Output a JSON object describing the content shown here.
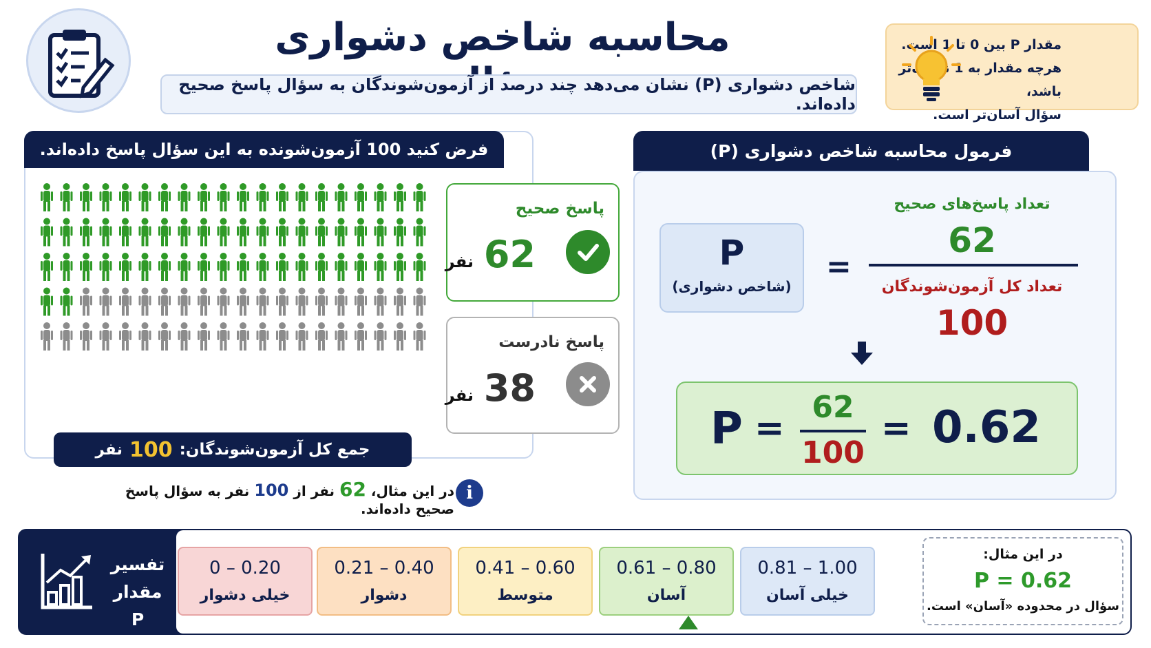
{
  "header": {
    "title": "محاسبه شاخص دشواری سؤال",
    "subtitle": "شاخص دشواری (P) نشان می‌دهد چند درصد از آزمون‌شوندگان به سؤال پاسخ صحیح داده‌اند."
  },
  "tip": {
    "line1": "مقدار P بین 0 تا 1 است.",
    "line2": "هرچه مقدار به 1 نزدیک‌تر باشد،",
    "line3": "سؤال آسان‌تر است."
  },
  "example_panel": {
    "title": "فرض کنید 100 آزمون‌شونده به این سؤال پاسخ داده‌اند.",
    "correct": {
      "label": "پاسخ صحیح",
      "count": "62",
      "unit": "نفر"
    },
    "wrong": {
      "label": "پاسخ نادرست",
      "count": "38",
      "unit": "نفر"
    },
    "total_label": "جمع کل آزمون‌شوندگان:",
    "total_value": "100",
    "total_unit": "نفر",
    "info": {
      "pre": "در این مثال،",
      "correct": "62",
      "mid": "نفر از",
      "total": "100",
      "post": "نفر به سؤال پاسخ صحیح داده‌اند."
    },
    "people_correct": 62,
    "people_total": 100,
    "colors": {
      "correct": "#2f9a27",
      "wrong": "#8c8c8c"
    }
  },
  "formula_panel": {
    "title": "فرمول محاسبه شاخص دشواری (P)",
    "p_letter": "P",
    "p_sub": "(شاخص دشواری)",
    "equals": "=",
    "numerator_label": "تعداد پاسخ‌های صحیح",
    "numerator": "62",
    "denominator_label": "تعداد کل آزمون‌شوندگان",
    "denominator": "100",
    "result": {
      "p": "P",
      "eq": "=",
      "num": "62",
      "den": "100",
      "value": "0.62"
    }
  },
  "scale": {
    "title_line1": "تفسیر",
    "title_line2": "مقدار P",
    "ranges": [
      {
        "value": "0.81 – 1.00",
        "label": "خیلی آسان",
        "bg": "#dde8f7",
        "border": "#b9cdea"
      },
      {
        "value": "0.61 – 0.80",
        "label": "آسان",
        "bg": "#dcf0cc",
        "border": "#9ccf7e"
      },
      {
        "value": "0.41 – 0.60",
        "label": "متوسط",
        "bg": "#fdefc4",
        "border": "#f1d27e"
      },
      {
        "value": "0.21 – 0.40",
        "label": "دشوار",
        "bg": "#fde0c2",
        "border": "#f2bd84"
      },
      {
        "value": "0 – 0.20",
        "label": "خیلی دشوار",
        "bg": "#f8d6d6",
        "border": "#e6a4a4"
      }
    ],
    "example": {
      "title": "در این مثال:",
      "value": "P = 0.62",
      "note": "سؤال در محدوده «آسان» است."
    }
  }
}
